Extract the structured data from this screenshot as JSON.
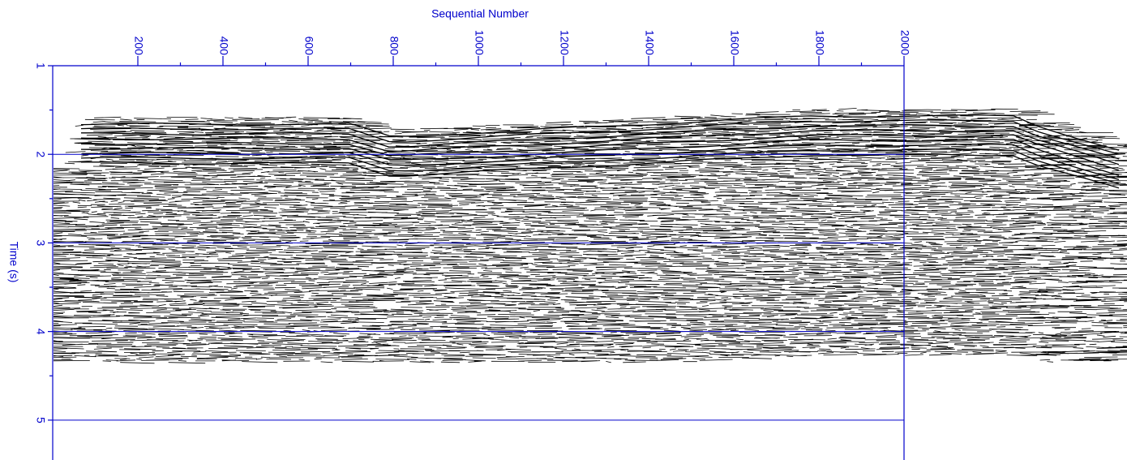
{
  "chart_data": {
    "type": "seismic",
    "x_label": "Sequential Number",
    "y_label": "Time (s)",
    "xlim": [
      0,
      2000
    ],
    "xticks": [
      200,
      400,
      600,
      800,
      1000,
      1200,
      1400,
      1600,
      1800,
      2000
    ],
    "ylim": [
      1,
      5.45
    ],
    "yticks": [
      1,
      2,
      3,
      4,
      5
    ],
    "y_inverted": true,
    "grid": true,
    "color": "#0000cc"
  }
}
